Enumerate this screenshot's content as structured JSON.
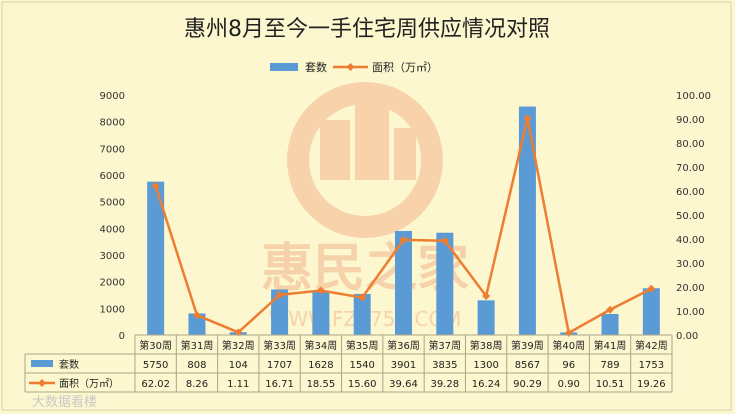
{
  "chart_data": {
    "type": "bar+line",
    "title": "惠州8月至今一手住宅周供应情况对照",
    "categories": [
      "第30周",
      "第31周",
      "第32周",
      "第33周",
      "第34周",
      "第35周",
      "第36周",
      "第37周",
      "第38周",
      "第39周",
      "第40周",
      "第41周",
      "第42周"
    ],
    "series": [
      {
        "name": "套数",
        "type": "bar",
        "axis": "left",
        "color": "#5b9bd5",
        "values": [
          5750,
          808,
          104,
          1707,
          1628,
          1540,
          3901,
          3835,
          1300,
          8567,
          96,
          789,
          1753
        ],
        "labels": [
          "5750",
          "808",
          "104",
          "1707",
          "1628",
          "1540",
          "3901",
          "3835",
          "1300",
          "8567",
          "96",
          "789",
          "1753"
        ]
      },
      {
        "name": "面积（万㎡）",
        "type": "line",
        "axis": "right",
        "color": "#ed7d31",
        "values": [
          62.02,
          8.26,
          1.11,
          16.71,
          18.55,
          15.6,
          39.64,
          39.28,
          16.24,
          90.29,
          0.9,
          10.51,
          19.26
        ],
        "labels": [
          "62.02",
          "8.26",
          "1.11",
          "16.71",
          "18.55",
          "15.60",
          "39.64",
          "39.28",
          "16.24",
          "90.29",
          "0.90",
          "10.51",
          "19.26"
        ]
      }
    ],
    "y_left": {
      "min": 0,
      "max": 9000,
      "ticks": [
        "0",
        "1000",
        "2000",
        "3000",
        "4000",
        "5000",
        "6000",
        "7000",
        "8000",
        "9000"
      ]
    },
    "y_right": {
      "min": 0,
      "max": 100,
      "ticks": [
        "0.00",
        "10.00",
        "20.00",
        "30.00",
        "40.00",
        "50.00",
        "60.00",
        "70.00",
        "80.00",
        "90.00",
        "100.00"
      ]
    },
    "legend": {
      "placement": "top-center"
    },
    "grid": false,
    "data_table": true
  },
  "watermark": {
    "text": "惠民之家",
    "url": "WWW.FZ0752.COM",
    "source": "大数据看楼"
  },
  "colors": {
    "background": "#fdf7cf",
    "plot_background": "#fdf7cf"
  }
}
